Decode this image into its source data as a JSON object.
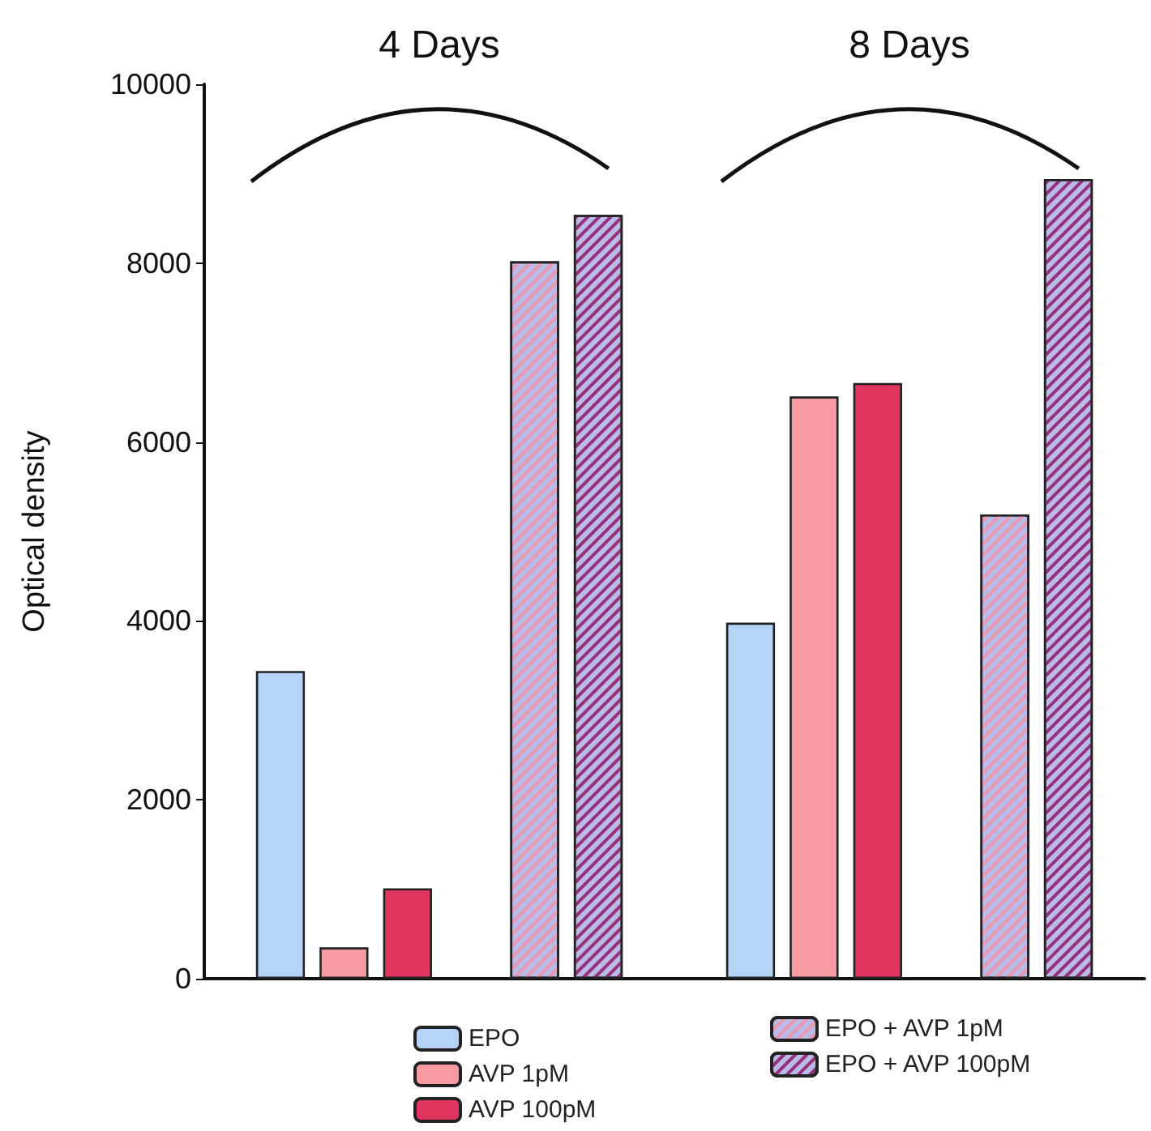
{
  "chart_data": {
    "type": "bar",
    "categories": [
      "4 Days",
      "8 Days"
    ],
    "ylabel": "Optical density",
    "ylim": [
      0,
      10000
    ],
    "yticks": [
      0,
      2000,
      4000,
      6000,
      8000,
      10000
    ],
    "grid": false,
    "legend": "bottom",
    "series": [
      {
        "name": "EPO",
        "color": "#b3d4f7",
        "values": [
          3440,
          3980
        ]
      },
      {
        "name": "AVP 1pM",
        "color": "#f79aa2",
        "values": [
          350,
          6510
        ]
      },
      {
        "name": "AVP 100pM",
        "color": "#e0355f",
        "values": [
          1010,
          6660
        ]
      },
      {
        "name": "EPO + AVP 1pM",
        "color": "#b9bce9",
        "values": [
          8020,
          5190
        ]
      },
      {
        "name": "EPO + AVP 100pM",
        "color": "#b9bce9",
        "values": [
          8540,
          8940
        ]
      }
    ]
  }
}
